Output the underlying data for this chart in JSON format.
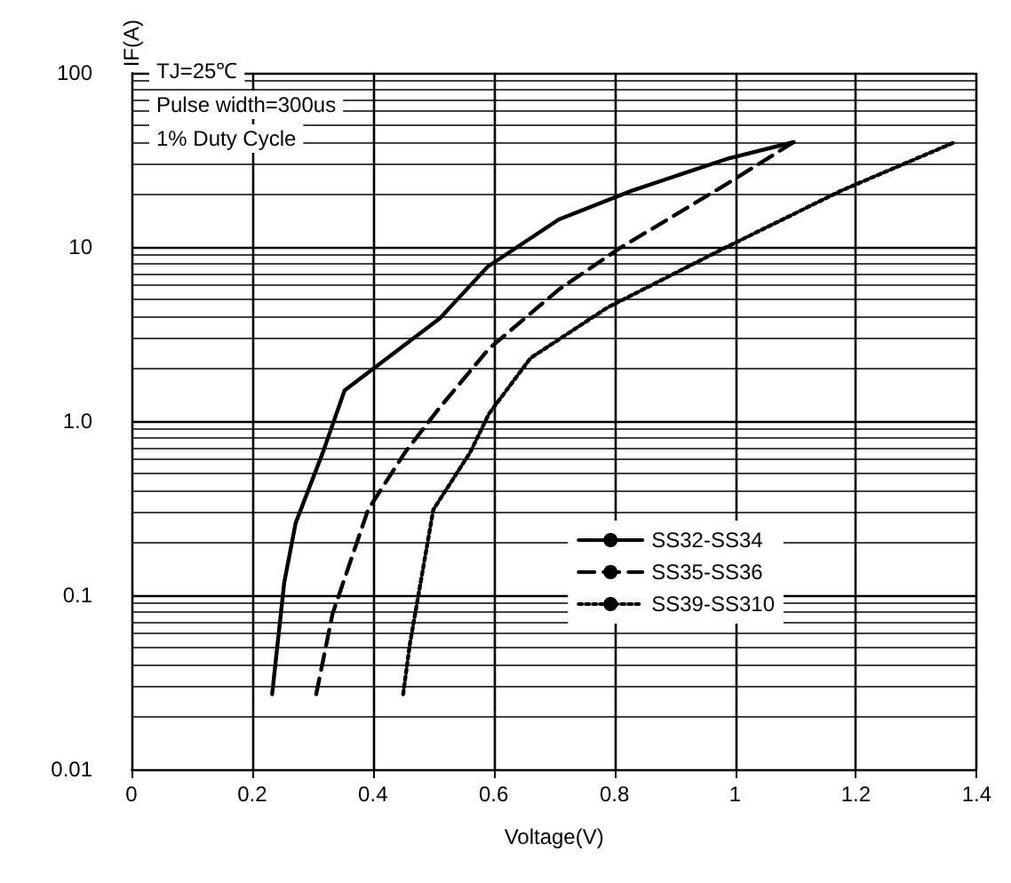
{
  "chart_data": {
    "type": "line",
    "xlabel": "Voltage(V)",
    "ylabel": "IF(A)",
    "log": "y",
    "grid": true,
    "legend": "right",
    "xlim": [
      0,
      1.4
    ],
    "xticks": [
      0,
      0.2,
      0.4,
      0.6,
      0.8,
      1.0,
      1.2,
      1.4
    ],
    "ylim": [
      0.01,
      100
    ],
    "yticks": [
      {
        "value": 0.01,
        "label": "0.01"
      },
      {
        "value": 0.1,
        "label": "0.1"
      },
      {
        "value": 1,
        "label": "1.0"
      },
      {
        "value": 10,
        "label": "10"
      },
      {
        "value": 100,
        "label": "100"
      }
    ],
    "annotations": [
      "TJ=25℃",
      "Pulse width=300us",
      "1% Duty Cycle"
    ],
    "marker": "none",
    "series": [
      {
        "name": "SS32-SS34",
        "color": "#000000",
        "line_style": "solid",
        "x": [
          0.233,
          0.253,
          0.272,
          0.317,
          0.353,
          0.511,
          0.59,
          0.708,
          0.828,
          0.986,
          1.097
        ],
        "values": [
          0.027,
          0.118,
          0.26,
          0.66,
          1.5,
          3.9,
          7.7,
          14.4,
          21,
          32,
          40
        ]
      },
      {
        "name": "SS35-SS36",
        "color": "#000000",
        "line_style": "dashed",
        "x": [
          0.306,
          0.333,
          0.392,
          0.453,
          0.511,
          0.592,
          0.708,
          0.808,
          0.986,
          1.097
        ],
        "values": [
          0.027,
          0.078,
          0.31,
          0.66,
          1.2,
          2.6,
          5.7,
          9.8,
          23,
          40
        ]
      },
      {
        "name": "SS39-SS310",
        "color": "#000000",
        "line_style": "dotted",
        "x": [
          0.45,
          0.461,
          0.5,
          0.561,
          0.592,
          0.661,
          0.789,
          0.986,
          1.175,
          1.364
        ],
        "values": [
          0.027,
          0.052,
          0.31,
          0.66,
          1.1,
          2.3,
          4.5,
          10,
          21,
          40
        ]
      }
    ]
  }
}
